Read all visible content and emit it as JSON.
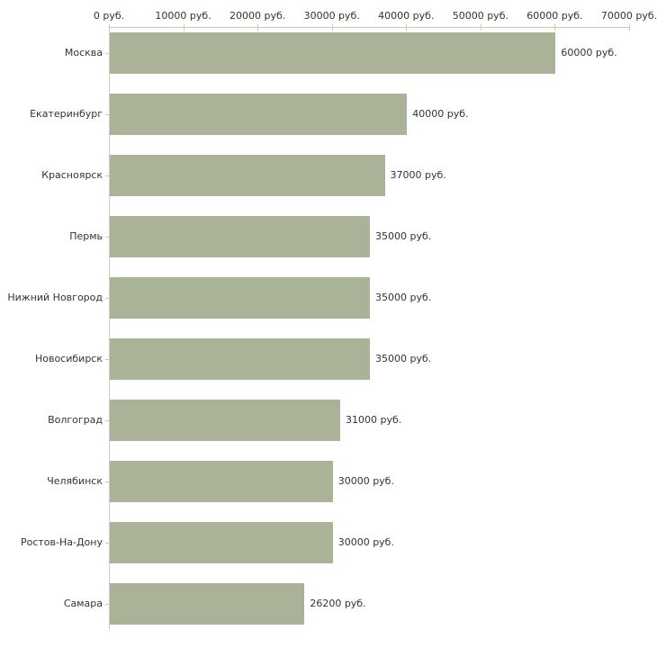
{
  "chart_data": {
    "type": "bar",
    "orientation": "horizontal",
    "categories": [
      "Москва",
      "Екатеринбург",
      "Красноярск",
      "Пермь",
      "Нижний Новгород",
      "Новосибирск",
      "Волгоград",
      "Челябинск",
      "Ростов-На-Дону",
      "Самара"
    ],
    "values": [
      60000,
      40000,
      37000,
      35000,
      35000,
      35000,
      31000,
      30000,
      30000,
      26200
    ],
    "value_labels": [
      "60000 руб.",
      "40000 руб.",
      "37000 руб.",
      "35000 руб.",
      "35000 руб.",
      "35000 руб.",
      "31000 руб.",
      "30000 руб.",
      "30000 руб.",
      "26200 руб."
    ],
    "x_ticks": [
      0,
      10000,
      20000,
      30000,
      40000,
      50000,
      60000,
      70000
    ],
    "x_tick_labels": [
      "0 руб.",
      "10000 руб.",
      "20000 руб.",
      "30000 руб.",
      "40000 руб.",
      "50000 руб.",
      "60000 руб.",
      "70000 руб."
    ],
    "xlim": [
      0,
      70000
    ],
    "unit_suffix": " руб.",
    "title": "",
    "xlabel": "",
    "ylabel": "",
    "grid": false,
    "legend": false,
    "colors": {
      "bar": "#aab397",
      "x_axis_line": "#ccccaa",
      "y_axis_line": "#cccccc",
      "x_tick": "#ccccaa",
      "y_tick": "#ccccaa",
      "text": "#333333",
      "background": "#ffffff"
    }
  }
}
